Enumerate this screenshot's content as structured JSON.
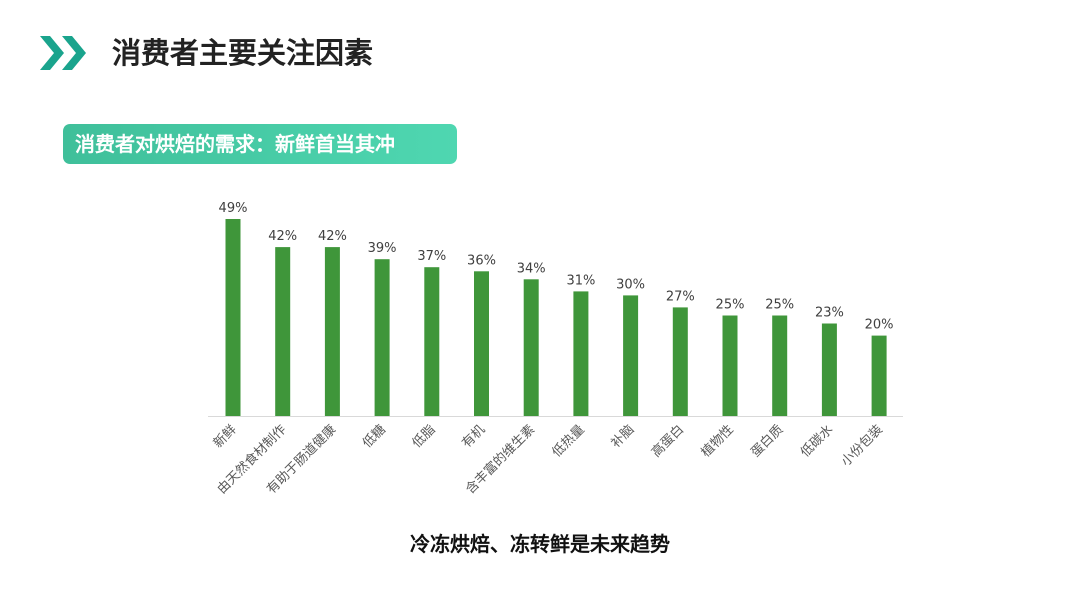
{
  "header": {
    "title": "消费者主要关注因素"
  },
  "subtitle": "消费者对烘焙的需求：新鲜首当其冲",
  "footer_note": "冷冻烘焙、冻转鲜是未来趋势",
  "colors": {
    "bar": "#3f963a",
    "accent_teal": "#1aa48d",
    "banner_start": "#3fbf9a",
    "banner_end": "#4fd7b1"
  },
  "chart_data": {
    "type": "bar",
    "categories": [
      "新鲜",
      "由天然食材制作",
      "有助于肠道健康",
      "低糖",
      "低脂",
      "有机",
      "含丰富的维生素",
      "低热量",
      "补脑",
      "高蛋白",
      "植物性",
      "蛋白质",
      "低碳水",
      "小份包装"
    ],
    "values": [
      49,
      42,
      42,
      39,
      37,
      36,
      34,
      31,
      30,
      27,
      25,
      25,
      23,
      20
    ],
    "value_labels": [
      "49%",
      "42%",
      "42%",
      "39%",
      "37%",
      "36%",
      "34%",
      "31%",
      "30%",
      "27%",
      "25%",
      "25%",
      "23%",
      "20%"
    ],
    "title": "",
    "xlabel": "",
    "ylabel": "",
    "ylim": [
      0,
      49
    ],
    "grid": false,
    "legend": "none"
  }
}
